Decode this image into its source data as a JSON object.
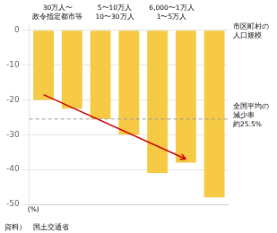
{
  "chart_data": {
    "type": "bar",
    "categories": [
      null,
      null,
      null,
      null,
      null,
      null,
      null
    ],
    "values": [
      -20.0,
      -22.5,
      -25.5,
      -30.0,
      -41.0,
      -38.0,
      -48.0
    ],
    "color": "#F6CA45",
    "ylim": [
      -50,
      2
    ],
    "yticks": [
      0,
      -10,
      -20,
      -30,
      -40,
      -50
    ],
    "grid": true,
    "tick_labels": "y",
    "ylabel": "(%)",
    "source": "資料）　国土交通省",
    "group_labels": [
      [
        "30万人〜",
        "政令指定都市等"
      ],
      [
        "5〜10万人",
        "10〜30万人"
      ],
      [
        "6,000〜1万人",
        "1〜5万人"
      ]
    ],
    "right_label": [
      "市区町村の",
      "人口規模"
    ],
    "hline": {
      "value": -25.5,
      "label": [
        "全国平均の",
        "減少率",
        "約25.5%"
      ]
    },
    "arrow": {
      "start": -18.5,
      "end": -37.0,
      "color": "#CC0000"
    }
  }
}
